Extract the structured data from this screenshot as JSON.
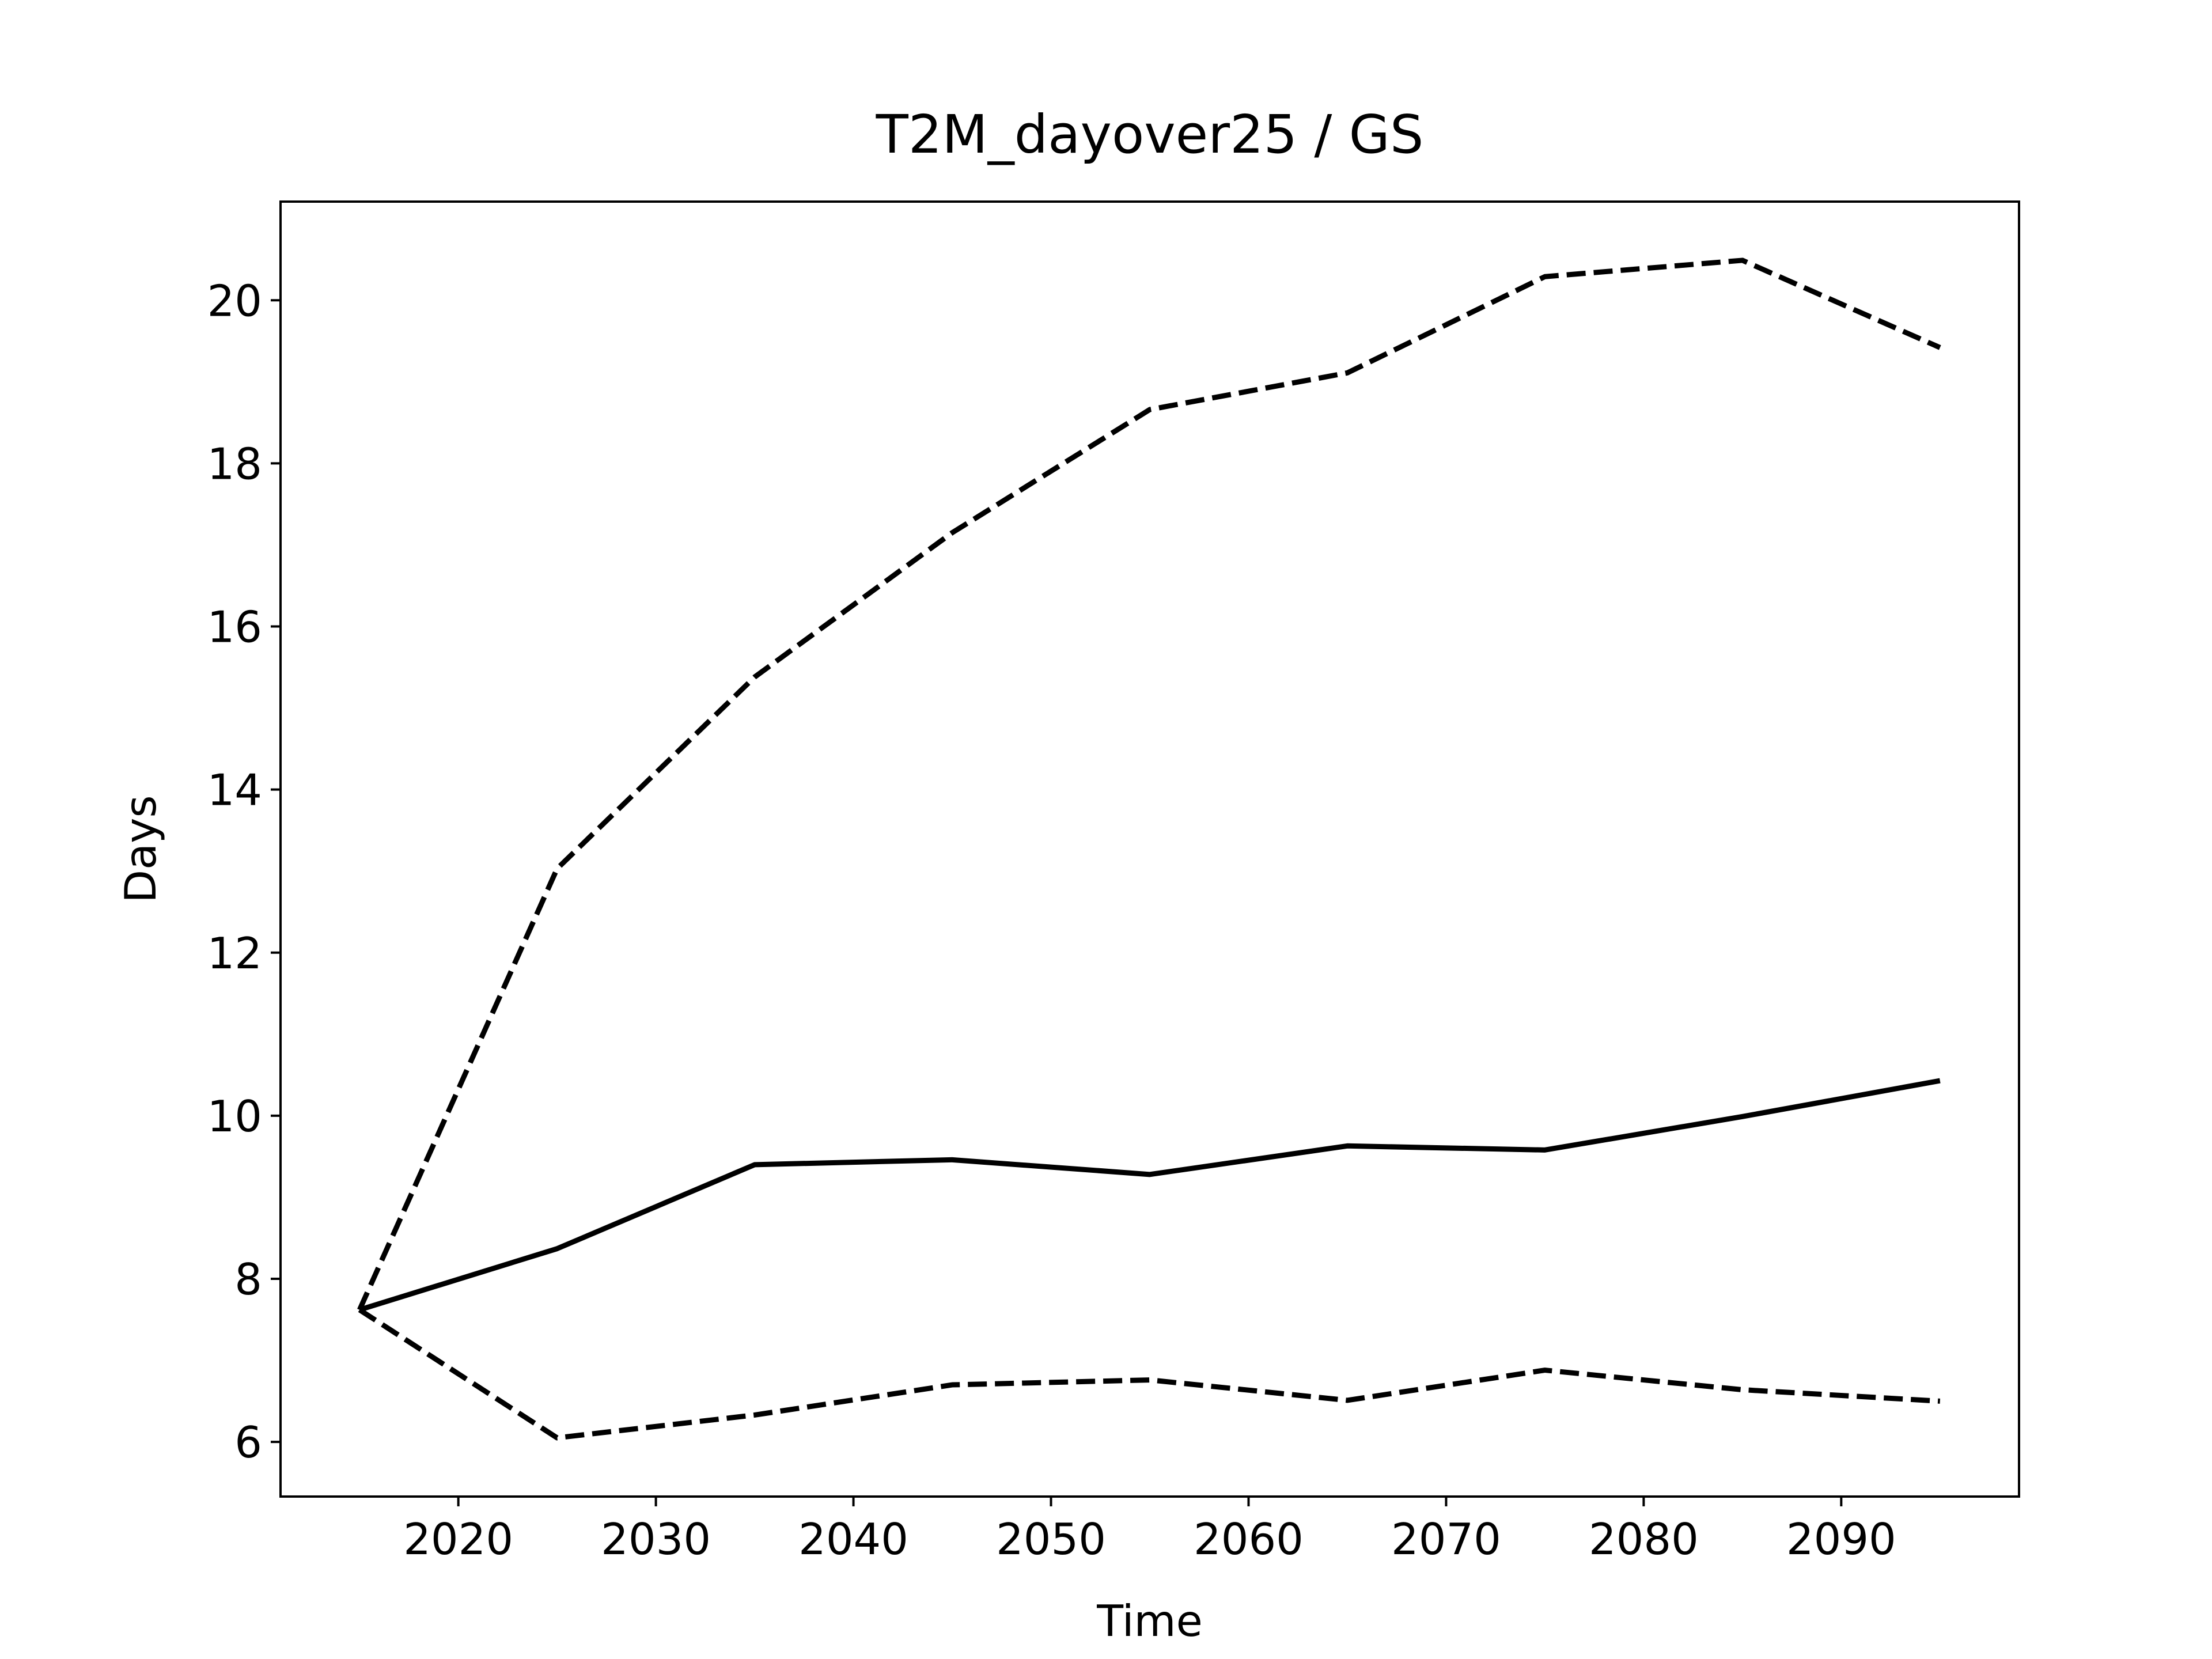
{
  "chart_data": {
    "type": "line",
    "title": "T2M_dayover25 / GS",
    "xlabel": "Time",
    "ylabel": "Days",
    "x": [
      2015,
      2025,
      2035,
      2045,
      2055,
      2065,
      2075,
      2085,
      2095
    ],
    "series": [
      {
        "color": "#000000",
        "linestyle": "solid",
        "values": [
          7.62,
          8.37,
          9.4,
          9.46,
          9.28,
          9.63,
          9.58,
          9.99,
          10.43
        ]
      },
      {
        "color": "#000000",
        "linestyle": "dashed",
        "values": [
          7.62,
          13.03,
          15.38,
          17.15,
          18.66,
          19.11,
          20.29,
          20.49,
          19.42
        ]
      },
      {
        "color": "#000000",
        "linestyle": "dashed",
        "values": [
          7.62,
          6.05,
          6.33,
          6.7,
          6.76,
          6.51,
          6.88,
          6.64,
          6.5
        ]
      }
    ],
    "xlim": [
      2011,
      2099
    ],
    "ylim": [
      5.33,
      21.21
    ],
    "xticks": [
      2020,
      2030,
      2040,
      2050,
      2060,
      2070,
      2080,
      2090
    ],
    "yticks": [
      6,
      8,
      10,
      12,
      14,
      16,
      18,
      20
    ],
    "grid": false
  }
}
